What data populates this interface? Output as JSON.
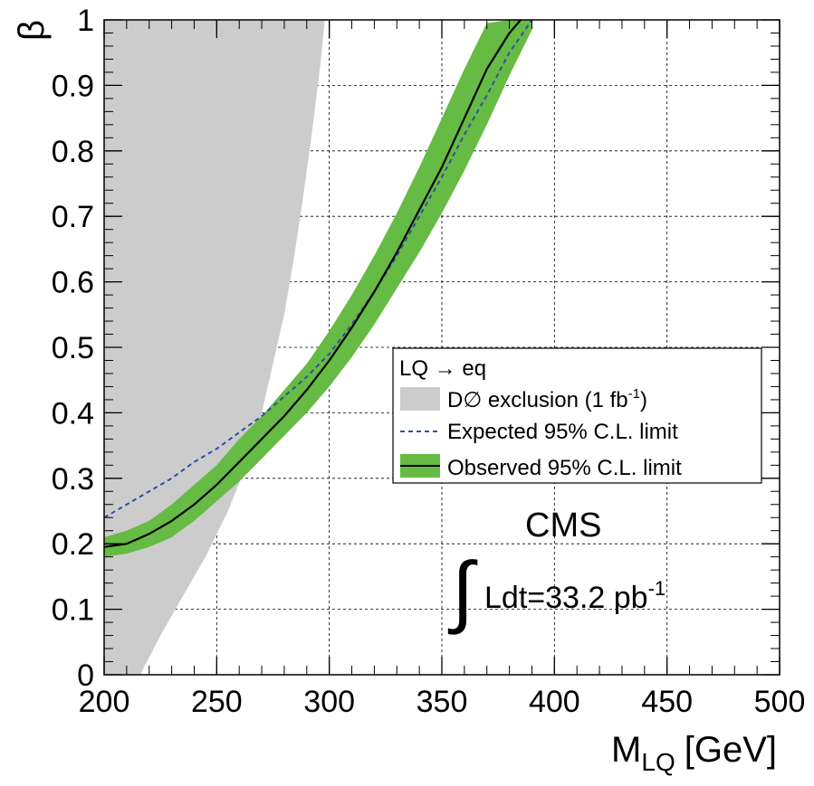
{
  "chart_data": {
    "type": "line",
    "process_label": "LQ → eq",
    "xlabel_main": "M",
    "xlabel_sub": "LQ",
    "xlabel_unit": "[GeV]",
    "ylabel": "β",
    "xlim": [
      200,
      500
    ],
    "ylim": [
      0,
      1
    ],
    "xticks": [
      "200",
      "250",
      "300",
      "350",
      "400",
      "450",
      "500"
    ],
    "yticks": [
      "0",
      "0.1",
      "0.2",
      "0.3",
      "0.4",
      "0.5",
      "0.6",
      "0.7",
      "0.8",
      "0.9",
      "1"
    ],
    "grid": true,
    "legend_position": "right-middle",
    "legend": {
      "header": "LQ → eq",
      "d0_main": "D∅ exclusion (1 fb",
      "d0_sup": "-1",
      "d0_close": ")",
      "expected": "Expected 95% C.L. limit",
      "observed": "Observed 95% C.L. limit"
    },
    "annotations": {
      "experiment": "CMS",
      "integral": "∫",
      "lumi_main": "Ldt=33.2 pb",
      "lumi_sup": "-1"
    },
    "colors": {
      "d0": "#cccccc",
      "band": "#66bb44",
      "observed": "#000000",
      "expected": "#2f4fa8",
      "grid": "#000000"
    },
    "series": [
      {
        "name": "D∅ exclusion (1 fb-1)",
        "kind": "area",
        "x": [
          216,
          225,
          235,
          245,
          255,
          262,
          268,
          272,
          276,
          280,
          284,
          288,
          292,
          296,
          298
        ],
        "y": [
          0.0,
          0.06,
          0.12,
          0.18,
          0.25,
          0.31,
          0.37,
          0.43,
          0.49,
          0.55,
          0.63,
          0.72,
          0.82,
          0.93,
          1.0
        ]
      },
      {
        "name": "Observed 95% C.L. limit",
        "kind": "line",
        "x": [
          200,
          210,
          220,
          230,
          240,
          250,
          260,
          270,
          280,
          290,
          300,
          310,
          320,
          330,
          340,
          350,
          360,
          370,
          380,
          385
        ],
        "y": [
          0.195,
          0.2,
          0.215,
          0.235,
          0.26,
          0.29,
          0.325,
          0.36,
          0.395,
          0.435,
          0.48,
          0.53,
          0.585,
          0.645,
          0.71,
          0.775,
          0.85,
          0.925,
          0.98,
          1.0
        ]
      },
      {
        "name": "Observed band",
        "kind": "band",
        "x": [
          200,
          210,
          220,
          230,
          240,
          250,
          260,
          270,
          280,
          290,
          300,
          310,
          320,
          330,
          340,
          350,
          360,
          370,
          380,
          390
        ],
        "y_low": [
          0.18,
          0.185,
          0.195,
          0.21,
          0.235,
          0.265,
          0.295,
          0.33,
          0.365,
          0.4,
          0.44,
          0.485,
          0.535,
          0.59,
          0.645,
          0.705,
          0.77,
          0.84,
          0.915,
          0.985
        ],
        "y_high": [
          0.21,
          0.22,
          0.235,
          0.26,
          0.29,
          0.32,
          0.36,
          0.395,
          0.435,
          0.475,
          0.525,
          0.58,
          0.64,
          0.705,
          0.775,
          0.85,
          0.925,
          0.995,
          1.0,
          1.0
        ]
      },
      {
        "name": "Expected 95% C.L. limit",
        "kind": "dashed",
        "x": [
          200,
          210,
          220,
          230,
          240,
          250,
          260,
          270,
          280,
          290,
          300,
          310,
          320,
          330,
          340,
          350,
          360,
          370,
          380,
          390
        ],
        "y": [
          0.24,
          0.26,
          0.28,
          0.3,
          0.325,
          0.345,
          0.37,
          0.395,
          0.425,
          0.455,
          0.49,
          0.535,
          0.585,
          0.64,
          0.7,
          0.76,
          0.825,
          0.885,
          0.95,
          1.0
        ]
      }
    ]
  }
}
